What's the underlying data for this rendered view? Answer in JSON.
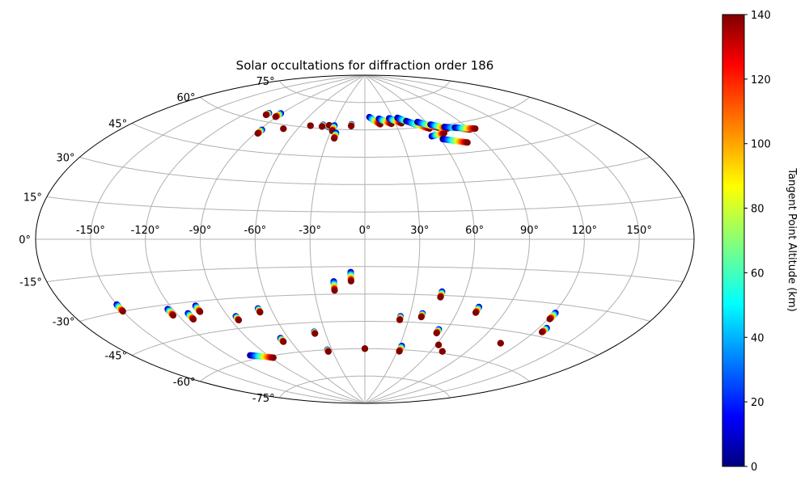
{
  "chart_data": {
    "type": "scatter",
    "projection": "aitoff",
    "title": "Solar occultations for diffraction order 186",
    "xlabel": "",
    "ylabel": "",
    "grid": true,
    "lon_ticks": [
      -150,
      -120,
      -90,
      -60,
      -30,
      0,
      30,
      60,
      90,
      120,
      150
    ],
    "lon_tick_labels": [
      "-150°",
      "-120°",
      "-90°",
      "-60°",
      "-30°",
      "0°",
      "30°",
      "60°",
      "90°",
      "120°",
      "150°"
    ],
    "lat_ticks": [
      -75,
      -60,
      -45,
      -30,
      -15,
      0,
      15,
      30,
      45,
      60,
      75
    ],
    "lat_tick_labels": [
      "-75°",
      "-60°",
      "-45°",
      "-30°",
      "-15°",
      "0°",
      "15°",
      "30°",
      "45°",
      "60°",
      "75°"
    ],
    "colorbar": {
      "label": "Tangent Point Altitude (km)",
      "colormap": "jet",
      "range": [
        0,
        140
      ],
      "ticks": [
        0,
        20,
        40,
        60,
        80,
        100,
        120,
        140
      ]
    },
    "occultation_tracks": [
      {
        "lon": -102,
        "lat": [
          64,
          63
        ]
      },
      {
        "lon": -91,
        "lat": [
          65,
          63
        ]
      },
      {
        "lon": -88,
        "lat": [
          56,
          54
        ]
      },
      {
        "lon": -72,
        "lat": [
          58
        ]
      },
      {
        "lon": -51,
        "lat": [
          61
        ]
      },
      {
        "lon": -40,
        "lat": [
          62,
          61
        ]
      },
      {
        "lon": -34,
        "lat": [
          61,
          62
        ]
      },
      {
        "lon": -29,
        "lat": [
          62,
          59
        ]
      },
      {
        "lon": -25,
        "lat": [
          58,
          55
        ]
      },
      {
        "lon": -13,
        "lat": [
          63,
          62
        ]
      },
      {
        "lon": [
          5,
          15
        ],
        "lat": [
          67,
          63
        ]
      },
      {
        "lon": [
          15,
          26
        ],
        "lat": [
          66,
          63
        ]
      },
      {
        "lon": [
          26,
          36
        ],
        "lat": [
          66,
          63
        ]
      },
      {
        "lon": [
          35,
          48
        ],
        "lat": [
          66,
          62
        ]
      },
      {
        "lon": [
          42,
          58
        ],
        "lat": [
          64,
          59
        ]
      },
      {
        "lon": [
          52,
          66
        ],
        "lat": [
          63,
          59
        ]
      },
      {
        "lon": [
          55,
          67
        ],
        "lat": [
          55,
          56
        ]
      },
      {
        "lon": [
          62,
          73
        ],
        "lat": [
          61,
          58
        ]
      },
      {
        "lon": [
          62,
          78
        ],
        "lat": [
          53,
          50
        ]
      },
      {
        "lon": [
          72,
          90
        ],
        "lat": [
          59,
          56
        ]
      },
      {
        "lon": [
          80,
          95
        ],
        "lat": [
          58,
          56
        ]
      },
      {
        "lon": -150,
        "lat": [
          -27,
          -30
        ]
      },
      {
        "lon": -123,
        "lat": [
          -32,
          -35
        ]
      },
      {
        "lon": -113,
        "lat": [
          -35,
          -38
        ]
      },
      {
        "lon": -105,
        "lat": [
          -32,
          -35
        ]
      },
      {
        "lon": -85,
        "lat": [
          -39,
          -41
        ]
      },
      {
        "lon": -68,
        "lat": [
          -36,
          -38
        ]
      },
      {
        "lon": -66,
        "lat": [
          -52,
          -54
        ]
      },
      {
        "lon": -38,
        "lat": [
          -50,
          -51
        ]
      },
      {
        "lon": -34,
        "lat": [
          -60,
          -61
        ]
      },
      {
        "lon": [
          -104,
          -88
        ],
        "lat": [
          -58,
          -61
        ]
      },
      {
        "lon": -18,
        "lat": [
          -23,
          -28
        ]
      },
      {
        "lon": -8,
        "lat": [
          -18,
          -23
        ]
      },
      {
        "lon": 0,
        "lat": [
          -60
        ]
      },
      {
        "lon": 24,
        "lat": [
          -42,
          -44
        ]
      },
      {
        "lon": 32,
        "lat": [
          -58,
          -61
        ]
      },
      {
        "lon": 38,
        "lat": [
          -40,
          -42
        ]
      },
      {
        "lon": 46,
        "lat": [
          -28,
          -31
        ]
      },
      {
        "lon": 54,
        "lat": [
          -48,
          -50
        ]
      },
      {
        "lon": 62,
        "lat": [
          -56
        ]
      },
      {
        "lon": 70,
        "lat": [
          -59
        ]
      },
      {
        "lon": 72,
        "lat": [
          -35,
          -38
        ]
      },
      {
        "lon": 107,
        "lat": [
          -51
        ]
      },
      {
        "lon": 121,
        "lat": [
          -34,
          -37
        ]
      },
      {
        "lon": 125,
        "lat": [
          -41,
          -43
        ]
      }
    ]
  }
}
